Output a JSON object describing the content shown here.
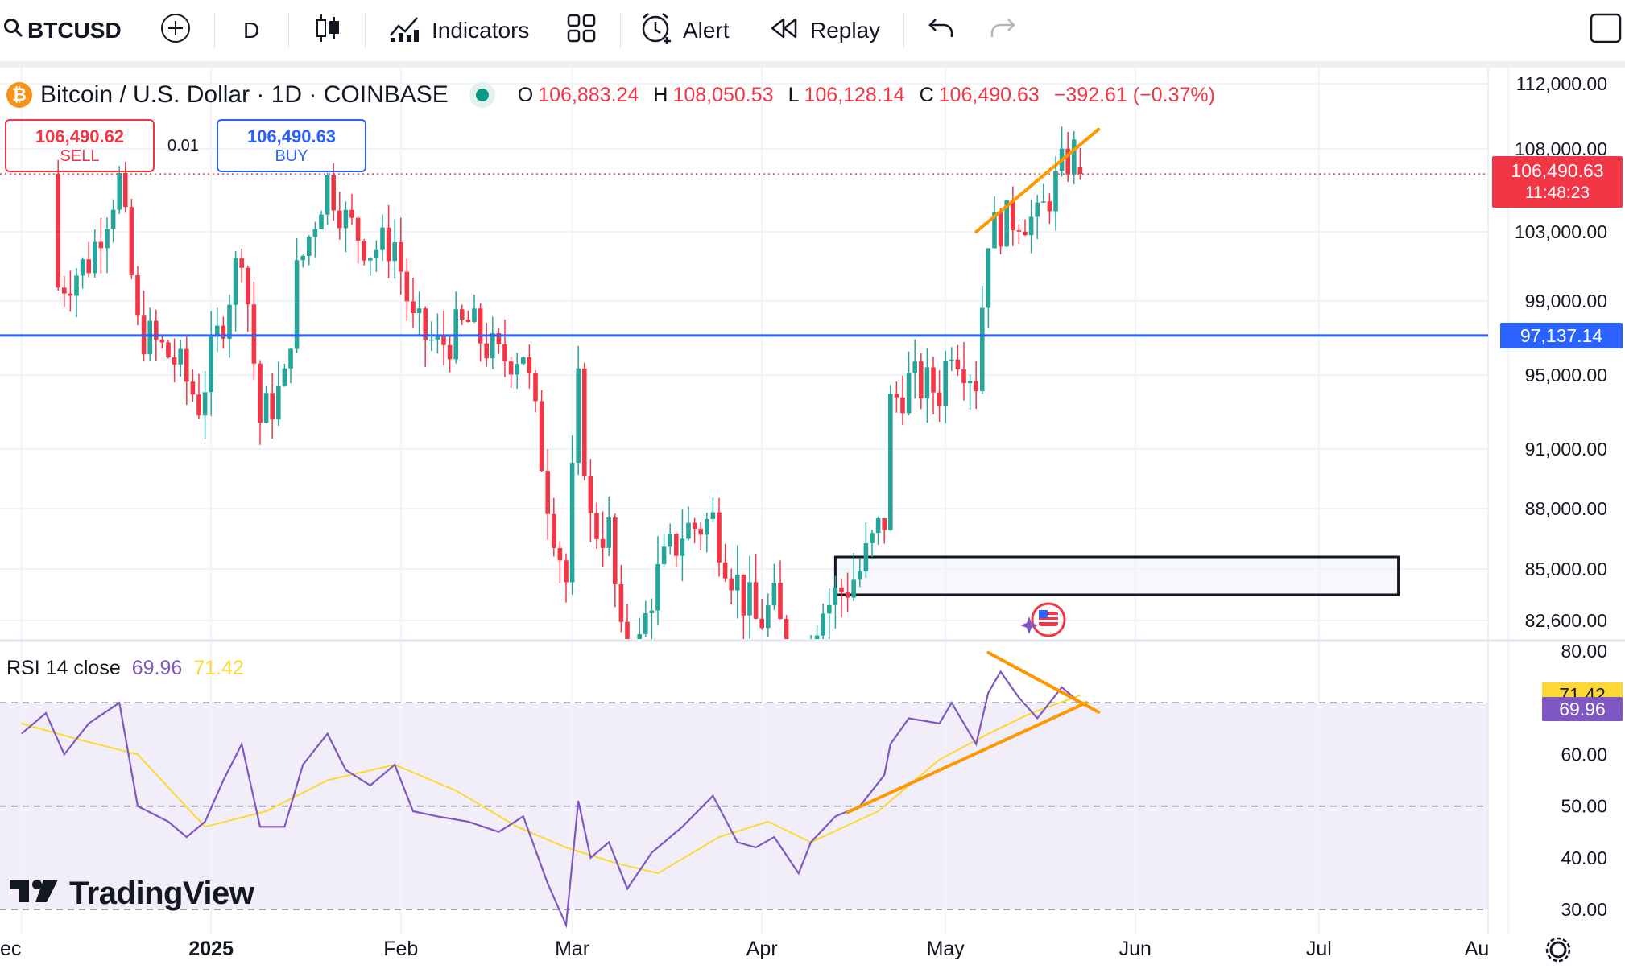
{
  "toolbar": {
    "symbol": "BTCUSD",
    "interval": "D",
    "indicators_label": "Indicators",
    "alert_label": "Alert",
    "replay_label": "Replay"
  },
  "legend": {
    "title": "Bitcoin / U.S. Dollar · 1D · COINBASE",
    "o_label": "O",
    "o_value": "106,883.24",
    "h_label": "H",
    "h_value": "108,050.53",
    "l_label": "L",
    "l_value": "106,128.14",
    "c_label": "C",
    "c_value": "106,490.63",
    "change": "−392.61 (−0.37%)"
  },
  "trade": {
    "sell_price": "106,490.62",
    "sell_label": "SELL",
    "spread": "0.01",
    "buy_price": "106,490.63",
    "buy_label": "BUY"
  },
  "price_labels": {
    "last_price": "106,490.63",
    "countdown": "11:48:23",
    "hline_price": "97,137.14"
  },
  "rsi": {
    "label": "RSI 14 close",
    "rsi_value": "69.96",
    "ma_value": "71.42"
  },
  "brand": "TradingView",
  "colors": {
    "up": "#26a69a",
    "down": "#f23645",
    "hline": "#2962ff",
    "trendline": "#ff9800",
    "rsi": "#7e57c2",
    "rsi_ma": "#fdd835"
  },
  "chart_data": [
    {
      "type": "candlestick",
      "title": "Bitcoin / U.S. Dollar · 1D · COINBASE",
      "x_labels": [
        "ec",
        "2025",
        "Feb",
        "Mar",
        "Apr",
        "May",
        "Jun",
        "Jul",
        "Au"
      ],
      "y_ticks": [
        "112,000.00",
        "108,000.00",
        "103,000.00",
        "99,000.00",
        "95,000.00",
        "91,000.00",
        "88,000.00",
        "85,000.00",
        "82,600.00"
      ],
      "ylim": [
        80600,
        113200
      ],
      "horizontal_line": 97137.14,
      "last_close": 106490.63,
      "close_path": [
        [
          "2024-12-07",
          99800
        ],
        [
          "2024-12-12",
          101300
        ],
        [
          "2024-12-17",
          106100
        ],
        [
          "2024-12-20",
          97500
        ],
        [
          "2024-12-26",
          95800
        ],
        [
          "2024-12-30",
          93500
        ],
        [
          "2025-01-03",
          98200
        ],
        [
          "2025-01-06",
          102200
        ],
        [
          "2025-01-09",
          92500
        ],
        [
          "2025-01-13",
          94500
        ],
        [
          "2025-01-15",
          100500
        ],
        [
          "2025-01-20",
          106100
        ],
        [
          "2025-01-23",
          103700
        ],
        [
          "2025-01-27",
          102000
        ],
        [
          "2025-01-31",
          102400
        ],
        [
          "2025-02-03",
          97600
        ],
        [
          "2025-02-07",
          96500
        ],
        [
          "2025-02-12",
          97800
        ],
        [
          "2025-02-17",
          95800
        ],
        [
          "2025-02-21",
          96400
        ],
        [
          "2025-02-25",
          88700
        ],
        [
          "2025-02-28",
          84400
        ],
        [
          "2025-03-02",
          94200
        ],
        [
          "2025-03-04",
          87200
        ],
        [
          "2025-03-07",
          86800
        ],
        [
          "2025-03-10",
          78600
        ],
        [
          "2025-03-14",
          84000
        ],
        [
          "2025-03-19",
          86900
        ],
        [
          "2025-03-24",
          87400
        ],
        [
          "2025-03-28",
          84300
        ],
        [
          "2025-03-31",
          82500
        ],
        [
          "2025-04-03",
          83200
        ],
        [
          "2025-04-07",
          79200
        ],
        [
          "2025-04-09",
          82600
        ],
        [
          "2025-04-13",
          83700
        ],
        [
          "2025-04-17",
          84900
        ],
        [
          "2025-04-21",
          87500
        ],
        [
          "2025-04-22",
          93400
        ],
        [
          "2025-04-25",
          94600
        ],
        [
          "2025-04-30",
          94200
        ],
        [
          "2025-05-02",
          96900
        ],
        [
          "2025-05-06",
          94800
        ],
        [
          "2025-05-08",
          103000
        ],
        [
          "2025-05-13",
          104000
        ],
        [
          "2025-05-16",
          103600
        ],
        [
          "2025-05-20",
          106800
        ],
        [
          "2025-05-22",
          107800
        ],
        [
          "2025-05-23",
          106490.63
        ]
      ],
      "drawings": {
        "rising_trendline": [
          [
            "2025-05-06",
            103000
          ],
          [
            "2025-05-26",
            109200
          ]
        ],
        "box": {
          "x": [
            "2025-04-13",
            "2025-07-14"
          ],
          "y": [
            83800,
            85600
          ]
        }
      }
    },
    {
      "type": "line",
      "title": "RSI 14 close",
      "y_ticks": [
        "80.00",
        "60.00",
        "50.00",
        "40.00",
        "30.00"
      ],
      "ylim": [
        28,
        80
      ],
      "bands": [
        30,
        50,
        70
      ],
      "series": [
        {
          "name": "RSI 14 close",
          "points": [
            [
              "2024-12-01",
              64
            ],
            [
              "2024-12-05",
              68
            ],
            [
              "2024-12-08",
              60
            ],
            [
              "2024-12-12",
              66
            ],
            [
              "2024-12-17",
              70
            ],
            [
              "2024-12-20",
              50
            ],
            [
              "2024-12-25",
              47
            ],
            [
              "2024-12-28",
              44
            ],
            [
              "2024-12-31",
              47
            ],
            [
              "2025-01-03",
              55
            ],
            [
              "2025-01-06",
              62
            ],
            [
              "2025-01-09",
              46
            ],
            [
              "2025-01-13",
              46
            ],
            [
              "2025-01-16",
              58
            ],
            [
              "2025-01-20",
              64
            ],
            [
              "2025-01-23",
              57
            ],
            [
              "2025-01-27",
              54
            ],
            [
              "2025-01-31",
              58
            ],
            [
              "2025-02-03",
              49
            ],
            [
              "2025-02-07",
              48
            ],
            [
              "2025-02-12",
              47
            ],
            [
              "2025-02-17",
              45
            ],
            [
              "2025-02-21",
              48
            ],
            [
              "2025-02-25",
              35
            ],
            [
              "2025-02-28",
              27
            ],
            [
              "2025-03-02",
              51
            ],
            [
              "2025-03-04",
              40
            ],
            [
              "2025-03-07",
              43
            ],
            [
              "2025-03-10",
              34
            ],
            [
              "2025-03-14",
              41
            ],
            [
              "2025-03-19",
              46
            ],
            [
              "2025-03-24",
              52
            ],
            [
              "2025-03-28",
              43
            ],
            [
              "2025-03-31",
              42
            ],
            [
              "2025-04-03",
              44
            ],
            [
              "2025-04-07",
              37
            ],
            [
              "2025-04-09",
              43
            ],
            [
              "2025-04-13",
              48
            ],
            [
              "2025-04-17",
              50
            ],
            [
              "2025-04-21",
              56
            ],
            [
              "2025-04-22",
              62
            ],
            [
              "2025-04-25",
              67
            ],
            [
              "2025-04-30",
              66
            ],
            [
              "2025-05-02",
              70
            ],
            [
              "2025-05-06",
              62
            ],
            [
              "2025-05-08",
              72
            ],
            [
              "2025-05-10",
              76
            ],
            [
              "2025-05-13",
              71
            ],
            [
              "2025-05-16",
              67
            ],
            [
              "2025-05-20",
              73
            ],
            [
              "2025-05-22",
              71
            ],
            [
              "2025-05-23",
              69.96
            ]
          ]
        },
        {
          "name": "MA",
          "points": [
            [
              "2024-12-01",
              66
            ],
            [
              "2024-12-10",
              63
            ],
            [
              "2024-12-20",
              60
            ],
            [
              "2024-12-31",
              46
            ],
            [
              "2025-01-10",
              49
            ],
            [
              "2025-01-20",
              55
            ],
            [
              "2025-01-31",
              58
            ],
            [
              "2025-02-10",
              53
            ],
            [
              "2025-02-20",
              46
            ],
            [
              "2025-02-28",
              42
            ],
            [
              "2025-03-08",
              39
            ],
            [
              "2025-03-15",
              37
            ],
            [
              "2025-03-25",
              44
            ],
            [
              "2025-04-02",
              47
            ],
            [
              "2025-04-09",
              43
            ],
            [
              "2025-04-20",
              49
            ],
            [
              "2025-04-30",
              59
            ],
            [
              "2025-05-08",
              64
            ],
            [
              "2025-05-15",
              68
            ],
            [
              "2025-05-23",
              71.42
            ]
          ]
        }
      ],
      "drawings": {
        "lower_trendline": [
          [
            "2025-04-15",
            48.8
          ],
          [
            "2025-05-24",
            70
          ]
        ],
        "upper_trendline": [
          [
            "2025-05-08",
            79.7
          ],
          [
            "2025-05-26",
            68.2
          ]
        ]
      }
    }
  ]
}
